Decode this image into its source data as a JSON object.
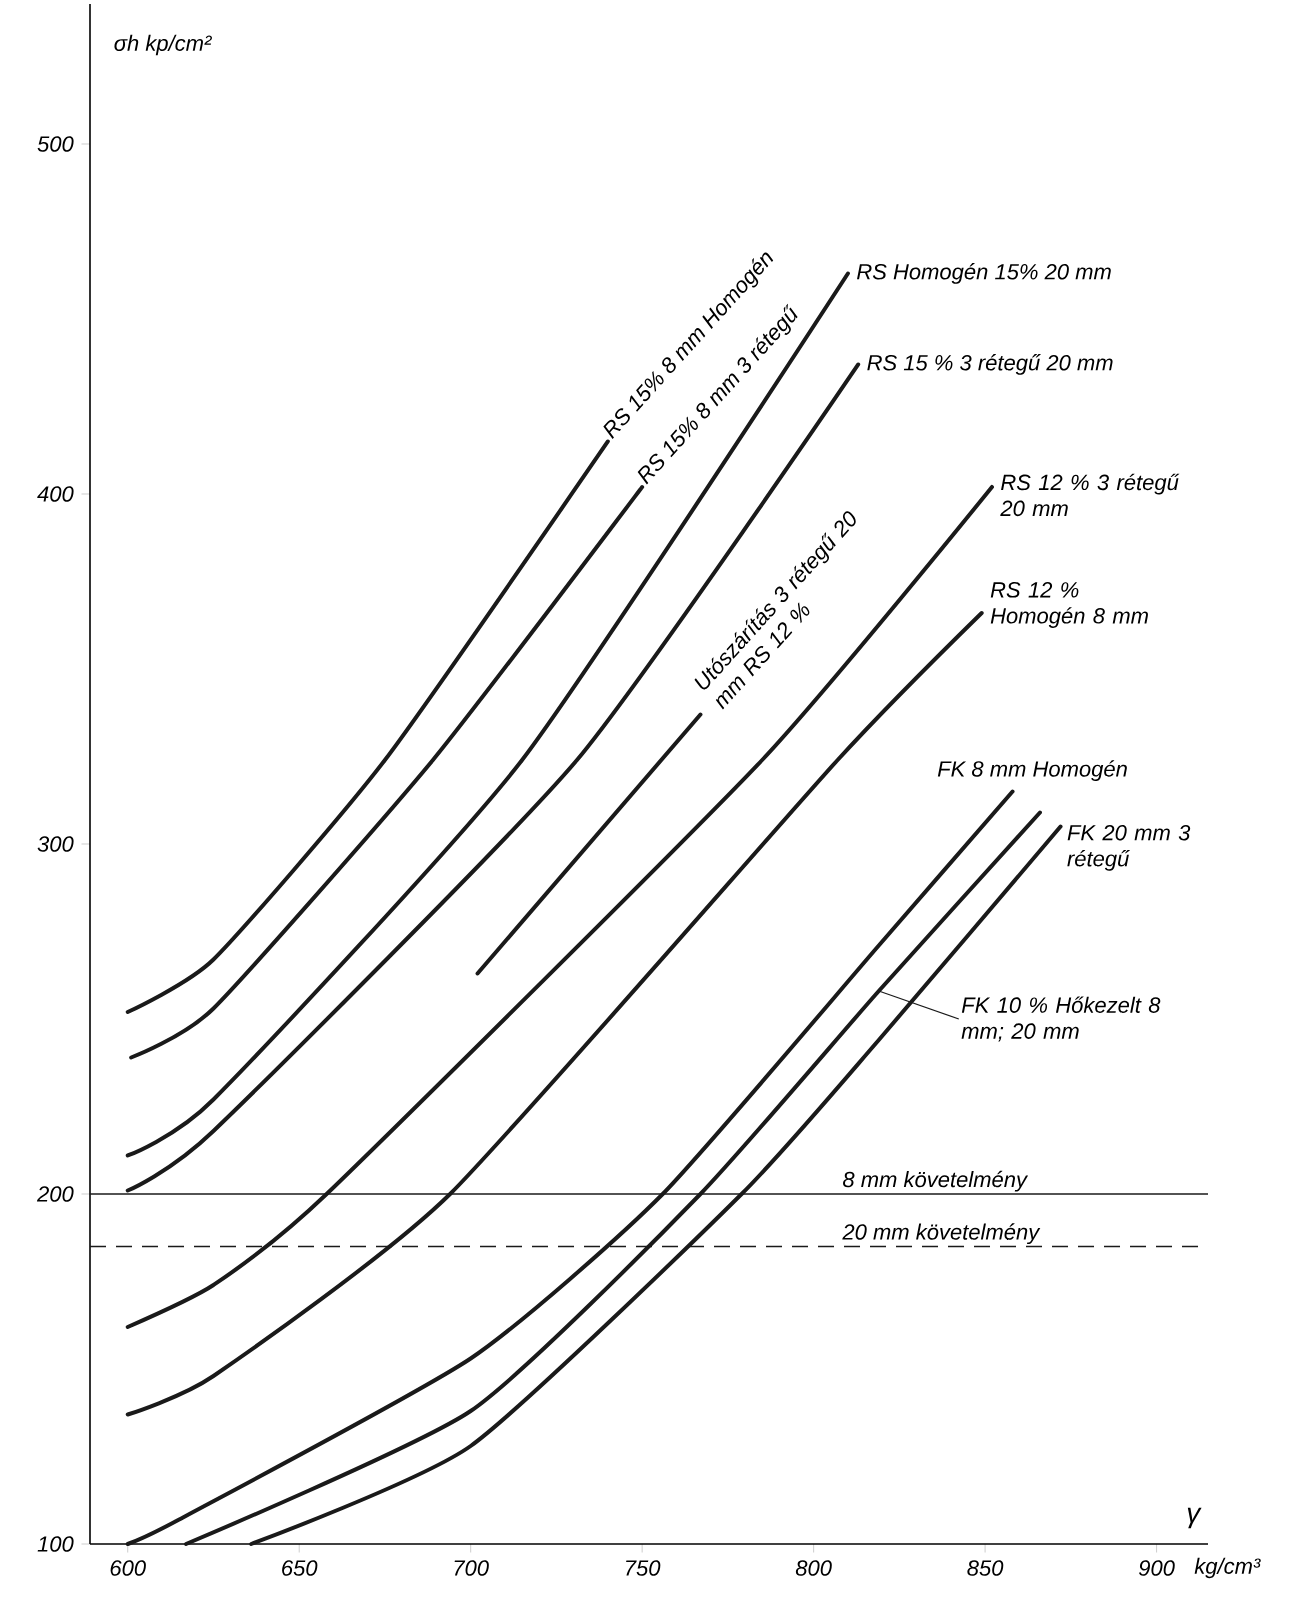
{
  "chart_data": {
    "type": "line",
    "xlabel": "γ",
    "ylabel": "σh kp/cm²",
    "annotations": [
      "kg/cm³"
    ],
    "xlim": [
      589,
      915
    ],
    "ylim": [
      100,
      540
    ],
    "xticks": [
      600,
      650,
      700,
      750,
      800,
      850,
      900
    ],
    "yticks": [
      100,
      200,
      300,
      400,
      500
    ],
    "marker": "none",
    "line_style": "solid",
    "series": [
      {
        "name": "RS 15% 8 mm Homogén",
        "color": "#1a1a1a",
        "x": [
          600,
          625,
          675,
          740
        ],
        "values": [
          252,
          267,
          324,
          415
        ]
      },
      {
        "name": "RS 15% 8 mm 3 rétegű",
        "color": "#1a1a1a",
        "x": [
          601,
          625,
          689,
          750
        ],
        "values": [
          239,
          253,
          324,
          402
        ]
      },
      {
        "name": "RS Homogén 15% 20 mm",
        "color": "#1a1a1a",
        "x": [
          600,
          625,
          715,
          810
        ],
        "values": [
          211,
          227,
          324,
          463
        ]
      },
      {
        "name": "RS 15 % 3 rétegű 20 mm",
        "color": "#1a1a1a",
        "x": [
          600,
          625,
          731,
          813
        ],
        "values": [
          201,
          218,
          324,
          437
        ]
      },
      {
        "name": "Utószárítás 3 rétegű 20 mm RS 12 %",
        "color": "#1a1a1a",
        "x": [
          702,
          767
        ],
        "values": [
          263,
          337
        ]
      },
      {
        "name": "RS 12 % 3 rétegű 20 mm",
        "color": "#1a1a1a",
        "x": [
          600,
          625,
          658,
          785,
          852
        ],
        "values": [
          162,
          174,
          200,
          324,
          402
        ]
      },
      {
        "name": "RS 12 % Homogén 8 mm",
        "color": "#1a1a1a",
        "x": [
          600,
          625,
          694,
          807,
          849
        ],
        "values": [
          137,
          148,
          200,
          324,
          366
        ]
      },
      {
        "name": "FK 8 mm Homogén",
        "color": "#1a1a1a",
        "x": [
          600,
          615,
          700,
          756,
          819,
          858
        ],
        "values": [
          100,
          107,
          153,
          200,
          271,
          315
        ]
      },
      {
        "name": "FK 10 % Hőkezelt 8 mm; 20 mm",
        "color": "#1a1a1a",
        "x": [
          617,
          700,
          767,
          819,
          866
        ],
        "values": [
          100,
          138,
          200,
          258,
          309
        ]
      },
      {
        "name": "FK 20 mm 3 rétegű",
        "color": "#1a1a1a",
        "x": [
          636,
          700,
          779,
          819,
          872
        ],
        "values": [
          100,
          128,
          200,
          244,
          305
        ]
      }
    ],
    "ref_lines": [
      {
        "axis": "y",
        "value": 200,
        "label": "8 mm követelmény",
        "color": "#1a1a1a",
        "line_style": "solid"
      },
      {
        "axis": "y",
        "value": 185,
        "label": "20 mm követelmény",
        "color": "#1a1a1a",
        "line_style": "dashed"
      }
    ]
  }
}
